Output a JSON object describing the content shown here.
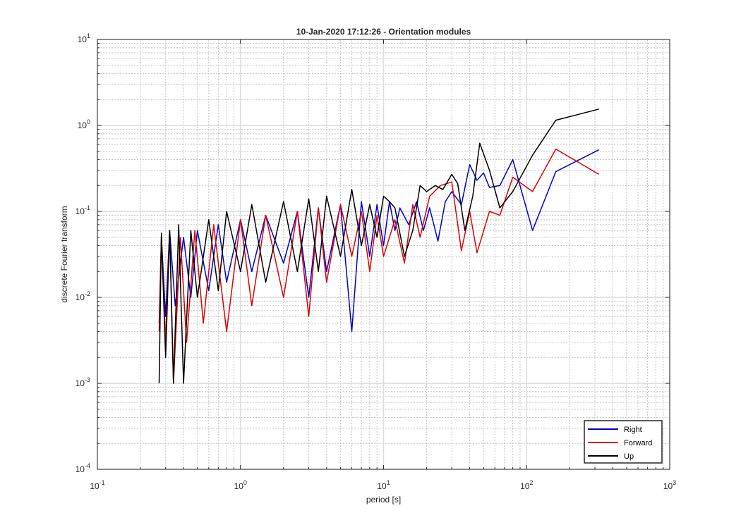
{
  "chart_data": {
    "type": "line",
    "title": "10-Jan-2020 17:12:26 - Orientation modules",
    "xlabel": "period [s]",
    "ylabel": "discrete Fourier transform",
    "xscale": "log",
    "yscale": "log",
    "xlim": [
      0.1,
      1000
    ],
    "ylim": [
      0.0001,
      10
    ],
    "grid": true,
    "minor_grid": true,
    "legend_position": "bottom-right",
    "x_ticks": [
      {
        "base": "10",
        "exp": "-1",
        "value": 0.1
      },
      {
        "base": "10",
        "exp": "0",
        "value": 1
      },
      {
        "base": "10",
        "exp": "1",
        "value": 10
      },
      {
        "base": "10",
        "exp": "2",
        "value": 100
      },
      {
        "base": "10",
        "exp": "3",
        "value": 1000
      }
    ],
    "y_ticks": [
      {
        "base": "10",
        "exp": "-4",
        "value": 0.0001
      },
      {
        "base": "10",
        "exp": "-3",
        "value": 0.001
      },
      {
        "base": "10",
        "exp": "-2",
        "value": 0.01
      },
      {
        "base": "10",
        "exp": "-1",
        "value": 0.1
      },
      {
        "base": "10",
        "exp": "0",
        "value": 1
      },
      {
        "base": "10",
        "exp": "1",
        "value": 10
      }
    ],
    "series": [
      {
        "name": "Right",
        "color": "#0000cc",
        "x": [
          0.27,
          0.28,
          0.3,
          0.32,
          0.35,
          0.4,
          0.45,
          0.5,
          0.6,
          0.7,
          0.8,
          1.0,
          1.2,
          1.5,
          2.0,
          2.5,
          3.0,
          3.5,
          4.0,
          5.0,
          6.0,
          7.0,
          8.0,
          9.0,
          10.0,
          11.0,
          12.0,
          13.0,
          15.0,
          17.0,
          19.0,
          21.0,
          24.0,
          27.0,
          30.0,
          35.0,
          40.0,
          45.0,
          50.0,
          55.0,
          65.0,
          80.0,
          110.0,
          160.0,
          320.0
        ],
        "y": [
          0.005,
          0.05,
          0.006,
          0.06,
          0.008,
          0.05,
          0.01,
          0.06,
          0.012,
          0.07,
          0.015,
          0.08,
          0.02,
          0.09,
          0.025,
          0.1,
          0.01,
          0.11,
          0.02,
          0.12,
          0.004,
          0.13,
          0.03,
          0.12,
          0.04,
          0.13,
          0.06,
          0.11,
          0.07,
          0.13,
          0.06,
          0.11,
          0.045,
          0.13,
          0.17,
          0.12,
          0.35,
          0.23,
          0.28,
          0.19,
          0.2,
          0.4,
          0.06,
          0.29,
          0.52
        ]
      },
      {
        "name": "Forward",
        "color": "#dd0000",
        "x": [
          0.27,
          0.28,
          0.3,
          0.32,
          0.34,
          0.38,
          0.42,
          0.48,
          0.55,
          0.65,
          0.8,
          1.0,
          1.2,
          1.5,
          2.0,
          2.5,
          3.0,
          3.5,
          4.0,
          5.0,
          6.0,
          7.0,
          8.0,
          9.0,
          10.0,
          12.0,
          14.0,
          16.0,
          18.0,
          21.0,
          25.0,
          30.0,
          35.0,
          40.0,
          45.0,
          55.0,
          65.0,
          80.0,
          110.0,
          160.0,
          320.0
        ],
        "y": [
          0.004,
          0.05,
          0.003,
          0.06,
          0.001,
          0.05,
          0.003,
          0.06,
          0.005,
          0.07,
          0.004,
          0.08,
          0.008,
          0.09,
          0.01,
          0.1,
          0.006,
          0.11,
          0.015,
          0.12,
          0.03,
          0.1,
          0.02,
          0.09,
          0.03,
          0.08,
          0.025,
          0.12,
          0.05,
          0.15,
          0.2,
          0.22,
          0.035,
          0.1,
          0.033,
          0.1,
          0.09,
          0.25,
          0.17,
          0.53,
          0.27
        ]
      },
      {
        "name": "Up",
        "color": "#000000",
        "x": [
          0.27,
          0.28,
          0.3,
          0.32,
          0.34,
          0.37,
          0.4,
          0.45,
          0.5,
          0.6,
          0.7,
          0.8,
          1.0,
          1.2,
          1.5,
          2.0,
          2.5,
          3.0,
          3.5,
          4.0,
          5.0,
          6.0,
          7.0,
          8.0,
          9.0,
          10.0,
          11.0,
          12.0,
          14.0,
          16.0,
          18.0,
          20.0,
          23.0,
          26.0,
          30.0,
          33.0,
          37.0,
          42.0,
          47.0,
          55.0,
          65.0,
          80.0,
          110.0,
          160.0,
          320.0
        ],
        "y": [
          0.001,
          0.056,
          0.002,
          0.06,
          0.001,
          0.07,
          0.001,
          0.06,
          0.01,
          0.08,
          0.012,
          0.1,
          0.02,
          0.12,
          0.015,
          0.13,
          0.02,
          0.14,
          0.02,
          0.15,
          0.03,
          0.18,
          0.04,
          0.12,
          0.05,
          0.15,
          0.13,
          0.11,
          0.03,
          0.06,
          0.2,
          0.17,
          0.2,
          0.18,
          0.27,
          0.21,
          0.06,
          0.15,
          0.62,
          0.3,
          0.11,
          0.17,
          0.45,
          1.15,
          1.55
        ]
      }
    ]
  }
}
